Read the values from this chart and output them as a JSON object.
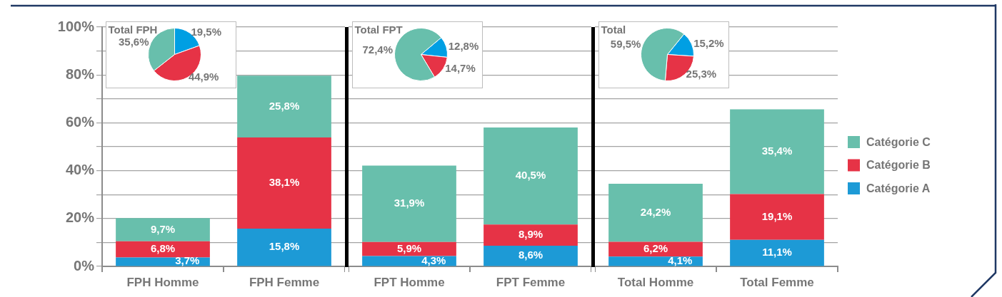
{
  "chart_data": [
    {
      "type": "bar",
      "stacked": true,
      "categories": [
        "FPH Homme",
        "FPH Femme"
      ],
      "series": [
        {
          "color": "#1d9ad6",
          "values": [
            3.7,
            15.8
          ],
          "value_labels": [
            "3,7%",
            "15,8%"
          ]
        },
        {
          "color": "#e63346",
          "values": [
            6.8,
            38.1
          ],
          "value_labels": [
            "6,8%",
            "38,1%"
          ]
        },
        {
          "color": "#68bfac",
          "values": [
            9.7,
            25.8
          ],
          "value_labels": [
            "9,7%",
            "25,8%"
          ]
        }
      ],
      "ylim": [
        0,
        100
      ],
      "yticks": [
        {
          "value": 0,
          "label": "0%"
        },
        {
          "value": 10,
          "label": null
        },
        {
          "value": 20,
          "label": "20%"
        },
        {
          "value": 30,
          "label": null
        },
        {
          "value": 40,
          "label": "40%"
        },
        {
          "value": 50,
          "label": null
        },
        {
          "value": 60,
          "label": "60%"
        },
        {
          "value": 70,
          "label": null
        },
        {
          "value": 80,
          "label": "80%"
        },
        {
          "value": 90,
          "label": null
        },
        {
          "value": 100,
          "label": "100%"
        }
      ],
      "grid": "y",
      "annotations": [
        "Total FPH"
      ]
    },
    {
      "type": "pie",
      "categories": [
        null,
        null,
        null
      ],
      "values": [
        19.5,
        44.9,
        35.6
      ],
      "value_labels": [
        "19,5%",
        "44,9%",
        "35,6%"
      ],
      "colors": [
        "#009fe3",
        "#e63346",
        "#68bfac"
      ]
    },
    {
      "type": "bar",
      "stacked": true,
      "categories": [
        "FPT Homme",
        "FPT Femme"
      ],
      "series": [
        {
          "color": "#1d9ad6",
          "values": [
            4.3,
            8.6
          ],
          "value_labels": [
            "4,3%",
            "8,6%"
          ]
        },
        {
          "color": "#e63346",
          "values": [
            5.9,
            8.9
          ],
          "value_labels": [
            "5,9%",
            "8,9%"
          ]
        },
        {
          "color": "#68bfac",
          "values": [
            31.9,
            40.5
          ],
          "value_labels": [
            "31,9%",
            "40,5%"
          ]
        }
      ],
      "ylim": [
        0,
        100
      ],
      "yticks": [
        0,
        10,
        20,
        30,
        40,
        50,
        60,
        70,
        80,
        90,
        100
      ],
      "grid": "y",
      "tick_labels": "x",
      "annotations": [
        "Total FPT"
      ]
    },
    {
      "type": "pie",
      "categories": [
        null,
        null,
        null
      ],
      "values": [
        12.8,
        14.7,
        72.4
      ],
      "value_labels": [
        "12,8%",
        "14,7%",
        "72,4%"
      ],
      "colors": [
        "#009fe3",
        "#e63346",
        "#68bfac"
      ]
    },
    {
      "type": "bar",
      "stacked": true,
      "categories": [
        "Total Homme",
        "Total Femme"
      ],
      "series": [
        {
          "name": "Catégorie A",
          "color": "#1d9ad6",
          "values": [
            4.1,
            11.1
          ],
          "value_labels": [
            "4,1%",
            "11,1%"
          ]
        },
        {
          "name": "Catégorie B",
          "color": "#e63346",
          "values": [
            6.2,
            19.1
          ],
          "value_labels": [
            "6,2%",
            "19,1%"
          ]
        },
        {
          "name": "Catégorie C",
          "color": "#68bfac",
          "values": [
            24.2,
            35.4
          ],
          "value_labels": [
            "24,2%",
            "35,4%"
          ]
        }
      ],
      "ylim": [
        0,
        100
      ],
      "yticks": [
        0,
        10,
        20,
        30,
        40,
        50,
        60,
        70,
        80,
        90,
        100
      ],
      "grid": "y",
      "tick_labels": "x",
      "legend": "right",
      "annotations": [
        "Total"
      ]
    },
    {
      "type": "pie",
      "categories": [
        null,
        null,
        null
      ],
      "values": [
        15.2,
        25.3,
        59.5
      ],
      "value_labels": [
        "15,2%",
        "25,3%",
        "59,5%"
      ],
      "colors": [
        "#009fe3",
        "#e63346",
        "#68bfac"
      ]
    }
  ]
}
